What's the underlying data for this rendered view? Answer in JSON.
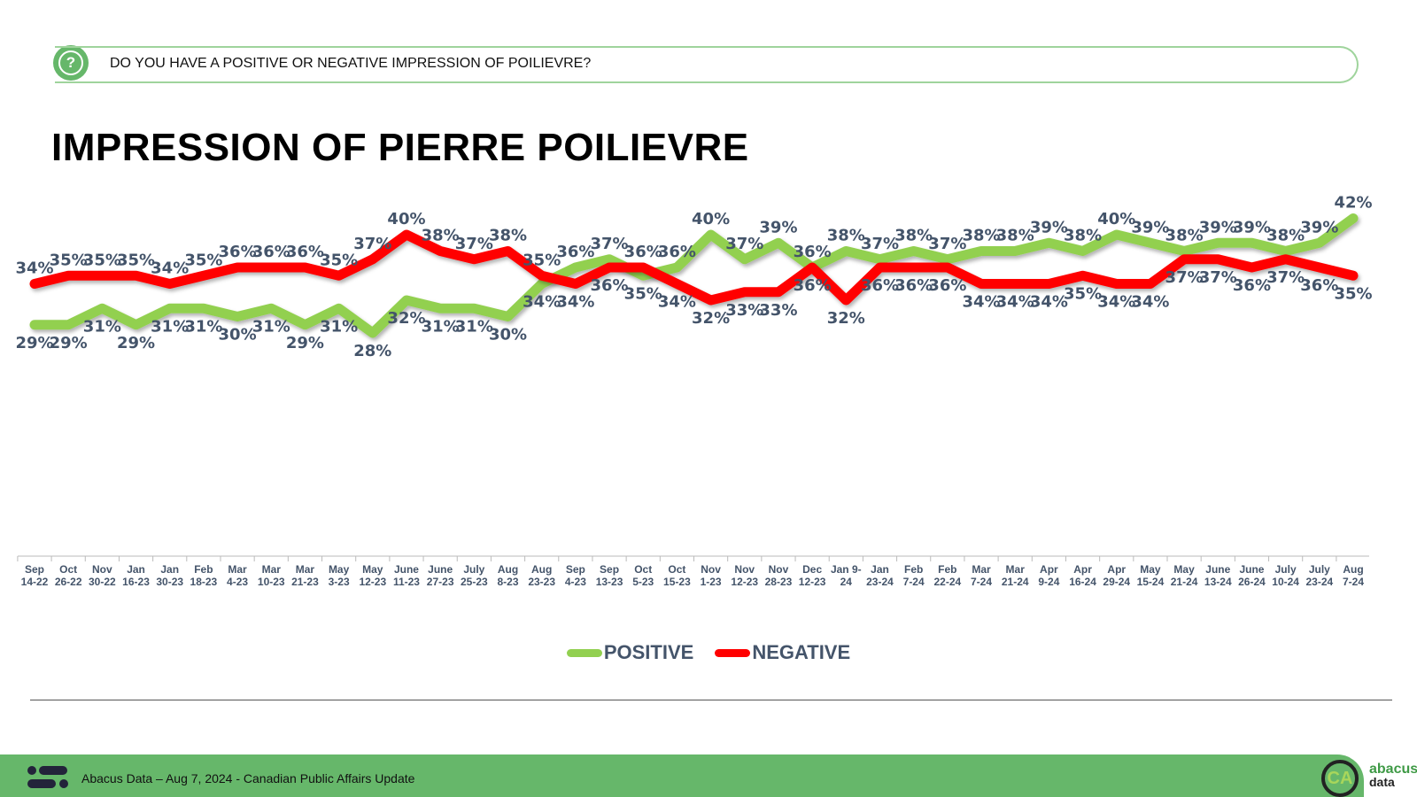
{
  "header": {
    "question": "DO YOU HAVE A POSITIVE OR NEGATIVE IMPRESSION OF POILIEVRE?",
    "icon": "question-bubble-icon"
  },
  "chart_data": {
    "type": "line",
    "title": "IMPRESSION OF PIERRE POILIEVRE",
    "xlabel": "",
    "ylabel": "",
    "ylim": [
      20,
      45
    ],
    "grid": false,
    "legend_position": "bottom",
    "categories": [
      [
        "Sep",
        "14-22"
      ],
      [
        "Oct",
        "26-22"
      ],
      [
        "Nov",
        "30-22"
      ],
      [
        "Jan",
        "16-23"
      ],
      [
        "Jan",
        "30-23"
      ],
      [
        "Feb",
        "18-23"
      ],
      [
        "Mar",
        "4-23"
      ],
      [
        "Mar",
        "10-23"
      ],
      [
        "Mar",
        "21-23"
      ],
      [
        "May",
        "3-23"
      ],
      [
        "May",
        "12-23"
      ],
      [
        "June",
        "11-23"
      ],
      [
        "June",
        "27-23"
      ],
      [
        "July",
        "25-23"
      ],
      [
        "Aug",
        "8-23"
      ],
      [
        "Aug",
        "23-23"
      ],
      [
        "Sep",
        "4-23"
      ],
      [
        "Sep",
        "13-23"
      ],
      [
        "Oct",
        "5-23"
      ],
      [
        "Oct",
        "15-23"
      ],
      [
        "Nov",
        "1-23"
      ],
      [
        "Nov",
        "12-23"
      ],
      [
        "Nov",
        "28-23"
      ],
      [
        "Dec",
        "12-23"
      ],
      [
        "Jan 9-",
        "24"
      ],
      [
        "Jan",
        "23-24"
      ],
      [
        "Feb",
        "7-24"
      ],
      [
        "Feb",
        "22-24"
      ],
      [
        "Mar",
        "7-24"
      ],
      [
        "Mar",
        "21-24"
      ],
      [
        "Apr",
        "9-24"
      ],
      [
        "Apr",
        "16-24"
      ],
      [
        "Apr",
        "29-24"
      ],
      [
        "May",
        "15-24"
      ],
      [
        "May",
        "21-24"
      ],
      [
        "June",
        "13-24"
      ],
      [
        "June",
        "26-24"
      ],
      [
        "July",
        "10-24"
      ],
      [
        "July",
        "23-24"
      ],
      [
        "Aug",
        "7-24"
      ]
    ],
    "series": [
      {
        "name": "POSITIVE",
        "color": "#92d050",
        "values": [
          29,
          29,
          31,
          29,
          31,
          31,
          30,
          31,
          29,
          31,
          28,
          32,
          31,
          31,
          30,
          34,
          36,
          37,
          35,
          36,
          40,
          37,
          39,
          36,
          38,
          37,
          38,
          37,
          38,
          38,
          39,
          38,
          40,
          39,
          38,
          39,
          39,
          38,
          39,
          42
        ]
      },
      {
        "name": "NEGATIVE",
        "color": "#ff0000",
        "values": [
          34,
          35,
          35,
          35,
          34,
          35,
          36,
          36,
          36,
          35,
          37,
          40,
          38,
          37,
          38,
          35,
          34,
          36,
          36,
          34,
          32,
          33,
          33,
          36,
          32,
          36,
          36,
          36,
          34,
          34,
          34,
          35,
          34,
          34,
          37,
          37,
          36,
          37,
          36,
          35
        ]
      }
    ],
    "label_suffix": "%"
  },
  "footer": {
    "text": "Abacus Data – Aug 7, 2024 - Canadian Public Affairs Update",
    "badge": "CA",
    "brand_top": "abacus",
    "brand_bottom": "data"
  }
}
